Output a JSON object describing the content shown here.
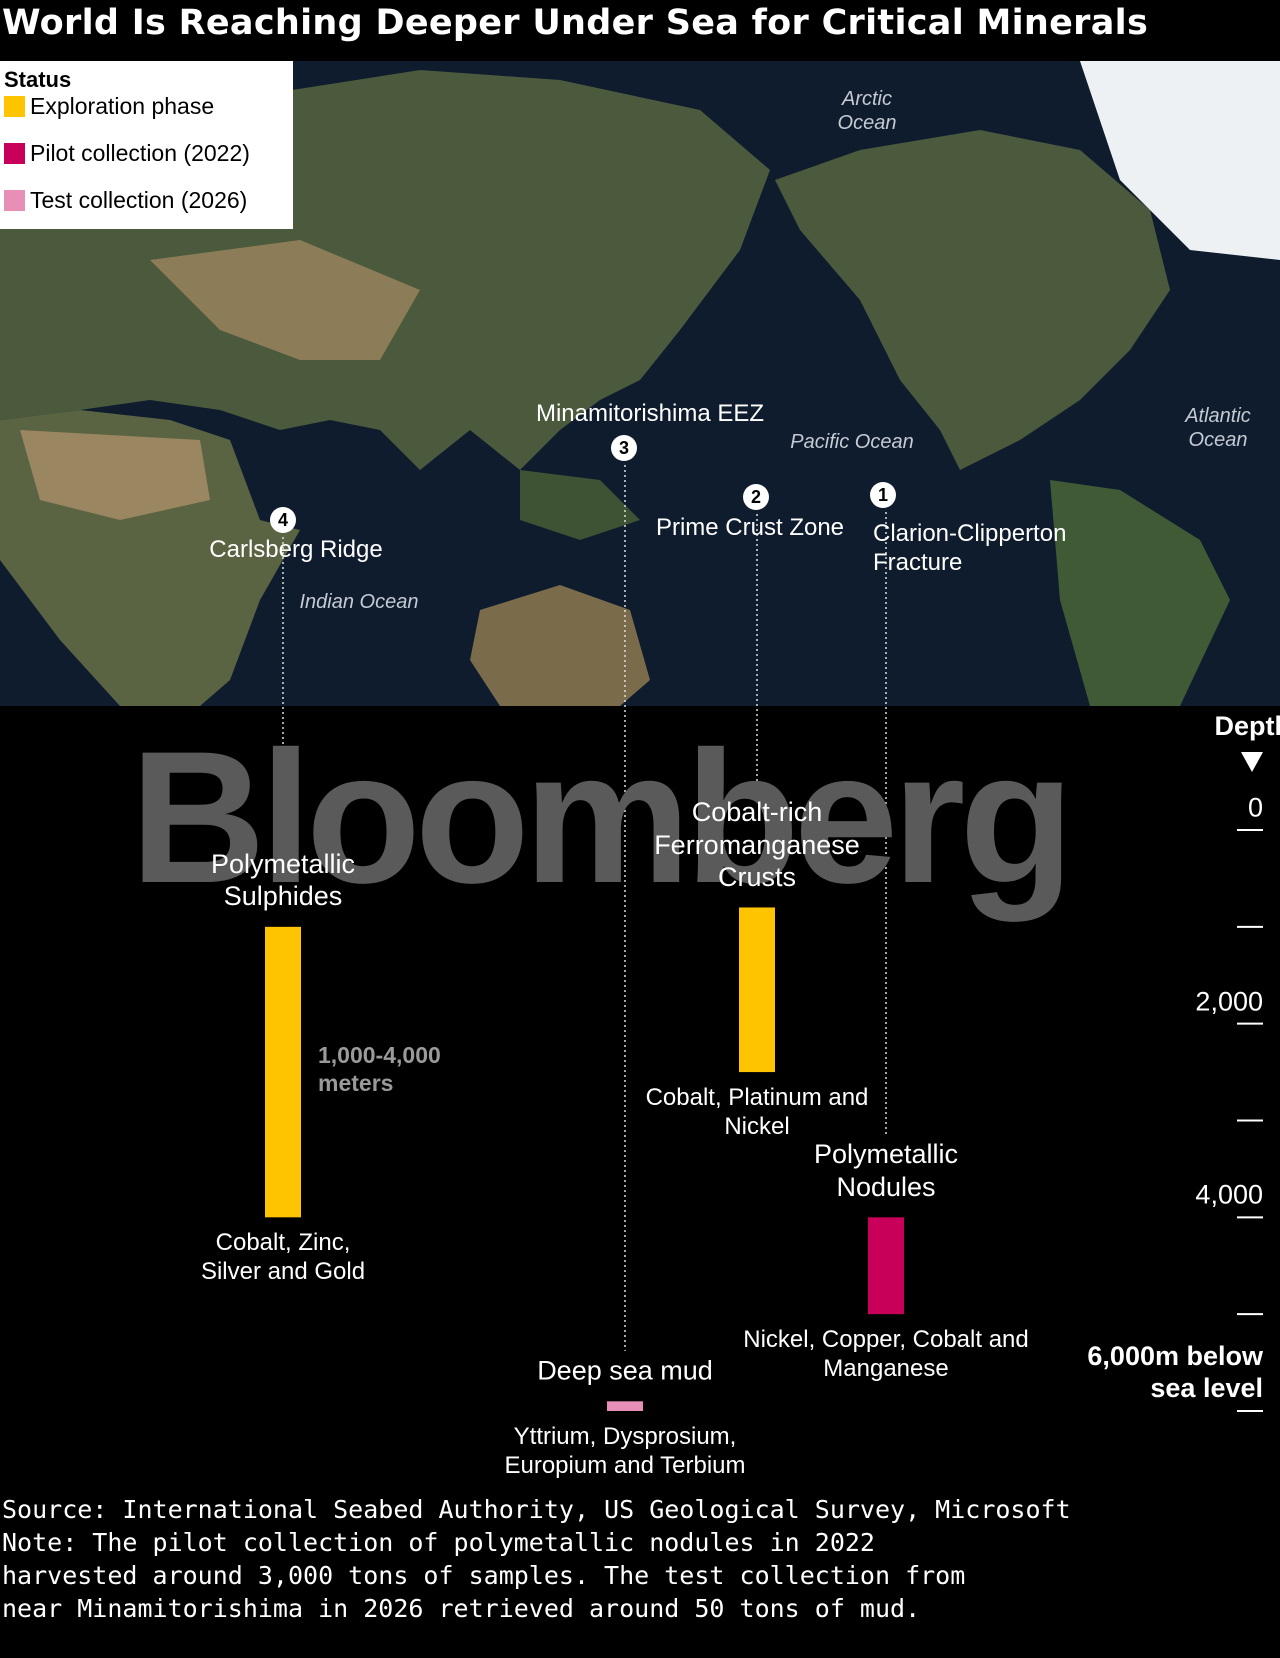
{
  "chart_data": {
    "type": "range",
    "title": "World Is Reaching Deeper Under Sea for Critical Minerals",
    "watermark": "Bloomberg",
    "legend_title": "Status",
    "statuses": [
      {
        "name": "Exploration phase",
        "color": "#ffc400"
      },
      {
        "name": "Pilot collection (2022)",
        "color": "#c8005a"
      },
      {
        "name": "Test collection (2026)",
        "color": "#e88fb8"
      }
    ],
    "oceans": [
      "Arctic Ocean",
      "Pacific Ocean",
      "Atlantic Ocean",
      "Indian Ocean"
    ],
    "axis_title": "Depth",
    "ylim": [
      0,
      6000
    ],
    "yticks": [
      0,
      {
        "value": 2000,
        "label": "2,000"
      },
      {
        "value": 4000,
        "label": "4,000"
      },
      {
        "value": 6000,
        "label": "6,000m below sea level"
      }
    ],
    "minor_ticks": [
      1000,
      3000,
      5000
    ],
    "deposits": [
      {
        "marker": 1,
        "site": "Clarion-Clipperton Fracture",
        "name": "Polymetallic Nodules",
        "minerals": "Nickel, Copper, Cobalt and Manganese",
        "status": 1,
        "low": 4000,
        "high": 5000
      },
      {
        "marker": 2,
        "site": "Prime Crust Zone",
        "name": "Cobalt-rich Ferromanganese Crusts",
        "minerals": "Cobalt, Platinum and Nickel",
        "status": 0,
        "low": 800,
        "high": 2500
      },
      {
        "marker": 3,
        "site": "Minamitorishima EEZ",
        "name": "Deep sea mud",
        "minerals": "Yttrium, Dysprosium, Europium and Terbium",
        "status": 2,
        "low": 5900,
        "high": 6000
      },
      {
        "marker": 4,
        "site": "Carlsberg Ridge",
        "name": "Polymetallic Sulphides",
        "minerals": "Cobalt, Zinc, Silver and Gold",
        "status": 0,
        "low": 1000,
        "high": 4000,
        "range_label": "1,000-4,000 meters"
      }
    ],
    "source": "Source: International Seabed Authority, US Geological Survey, Microsoft",
    "note": "Note: The pilot collection of polymetallic nodules in 2022 harvested around 3,000 tons of samples. The test collection from near Minamitorishima in 2026 retrieved around 50 tons of mud."
  }
}
